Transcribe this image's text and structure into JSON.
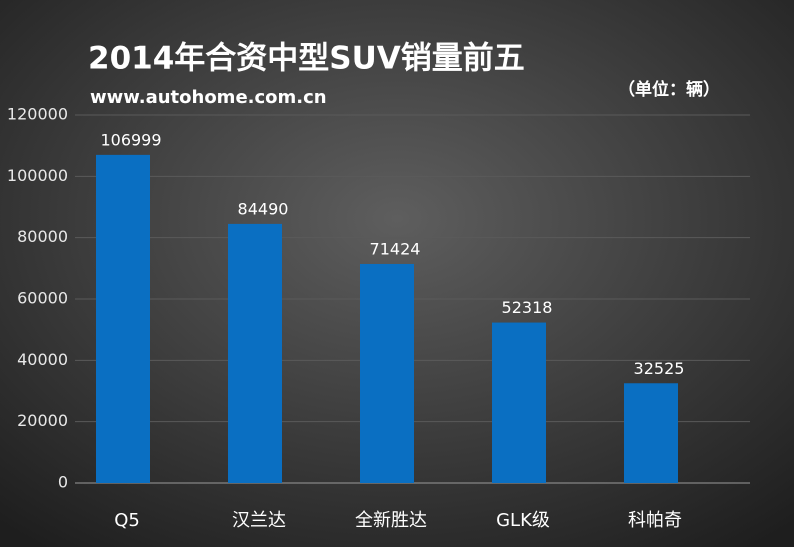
{
  "chart_data": {
    "type": "bar",
    "title": "2014年合资中型SUV销量前五",
    "subtitle": "www.autohome.com.cn",
    "unit": "（单位：辆）",
    "categories": [
      "Q5",
      "汉兰达",
      "全新胜达",
      "GLK级",
      "科帕奇"
    ],
    "values": [
      106999,
      84490,
      71424,
      52318,
      32525
    ],
    "color": "#0a6fc2",
    "ylim": [
      0,
      120000
    ],
    "yticks": [
      0,
      20000,
      40000,
      60000,
      80000,
      100000,
      120000
    ],
    "grid": true
  }
}
